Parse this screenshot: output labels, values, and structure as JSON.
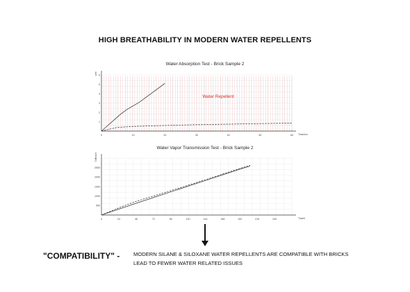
{
  "title": "HIGH BREATHABILITY IN MODERN WATER REPELLENTS",
  "chart_data": [
    {
      "type": "line",
      "title": "Water Absorption Test - Brick Sample 2",
      "xlabel": "Time/min",
      "ylabel": "L/m²",
      "xlim": [
        0,
        60
      ],
      "ylim": [
        0,
        6
      ],
      "xticks": [
        "0",
        "10",
        "20",
        "30",
        "40",
        "50",
        "60"
      ],
      "yticks": [
        "1",
        "2",
        "3",
        "4",
        "5",
        "6"
      ],
      "annotation": "Water Repellent",
      "annotation_color": "#d03030",
      "hatch_range": [
        0,
        60
      ],
      "grid": true,
      "series": [
        {
          "style": "solid",
          "x": [
            0,
            2,
            4,
            6,
            8,
            10,
            12,
            14,
            16,
            18,
            20
          ],
          "y": [
            0,
            0.6,
            1.2,
            1.8,
            2.3,
            2.7,
            3.1,
            3.6,
            4.1,
            4.6,
            5.1
          ]
        },
        {
          "style": "dashed",
          "x": [
            0,
            5,
            10,
            20,
            30,
            40,
            50,
            60
          ],
          "y": [
            0,
            0.4,
            0.5,
            0.6,
            0.68,
            0.74,
            0.8,
            0.85
          ]
        }
      ]
    },
    {
      "type": "line",
      "title": "Water Vapor Transmission Test - Brick Sample 2",
      "xlabel": "Time/h",
      "ylabel": "Diffusion",
      "xlim": [
        0,
        264
      ],
      "ylim": [
        0,
        3000
      ],
      "xticks": [
        "0",
        "24",
        "48",
        "72",
        "96",
        "120",
        "144",
        "168",
        "192",
        "216",
        "240"
      ],
      "yticks": [
        "500",
        "1000",
        "1500",
        "2000",
        "2500"
      ],
      "grid": true,
      "series": [
        {
          "style": "solid",
          "x": [
            0,
            24,
            48,
            72,
            96,
            120,
            144,
            168,
            192,
            206
          ],
          "y": [
            0,
            310,
            620,
            920,
            1220,
            1520,
            1820,
            2120,
            2420,
            2580
          ]
        },
        {
          "style": "dashed",
          "x": [
            0,
            24,
            48,
            72,
            96,
            120,
            144,
            168,
            192,
            206
          ],
          "y": [
            0,
            380,
            720,
            1000,
            1280,
            1570,
            1860,
            2160,
            2460,
            2620
          ]
        }
      ]
    }
  ],
  "compatibility_label": "\"COMPATIBILITY\" -",
  "line1": "MODERN SILANE & SILOXANE WATER REPELLENTS ARE COMPATIBLE WITH BRICKS",
  "line2": "LEAD TO FEWER WATER RELATED ISSUES"
}
